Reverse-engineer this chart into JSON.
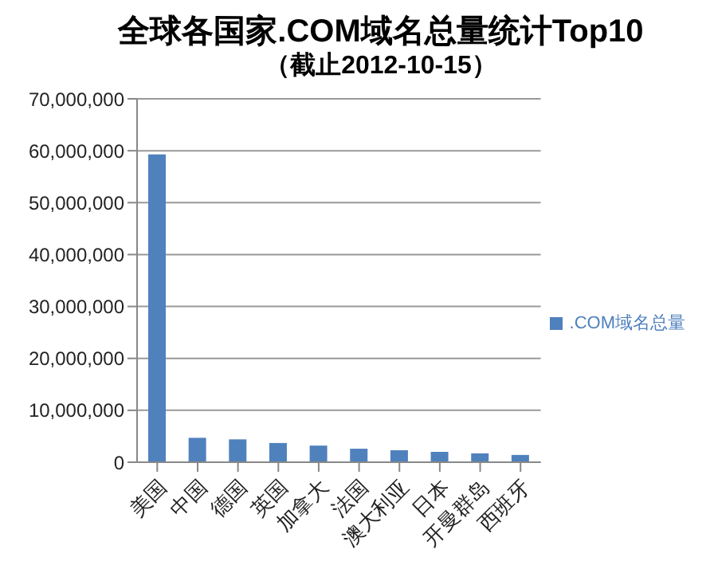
{
  "chart_data": {
    "type": "bar",
    "title": "全球各国家.COM域名总量统计Top10",
    "subtitle": "（截止2012-10-15）",
    "categories": [
      "美国",
      "中国",
      "德国",
      "英国",
      "加拿大",
      "法国",
      "澳大利亚",
      "日本",
      "开曼群岛",
      "西班牙"
    ],
    "series": [
      {
        "name": ".COM域名总量",
        "color": "#4f81bd",
        "values": [
          59300000,
          4700000,
          4400000,
          3700000,
          3200000,
          2600000,
          2300000,
          2000000,
          1700000,
          1400000
        ]
      }
    ],
    "ylim": [
      0,
      70000000
    ],
    "yticks": [
      {
        "value": 0,
        "label": "0"
      },
      {
        "value": 10000000,
        "label": "10,000,000"
      },
      {
        "value": 20000000,
        "label": "20,000,000"
      },
      {
        "value": 30000000,
        "label": "30,000,000"
      },
      {
        "value": 40000000,
        "label": "40,000,000"
      },
      {
        "value": 50000000,
        "label": "50,000,000"
      },
      {
        "value": 60000000,
        "label": "60,000,000"
      },
      {
        "value": 70000000,
        "label": "70,000,000"
      }
    ],
    "grid": "y",
    "legend": "right"
  }
}
